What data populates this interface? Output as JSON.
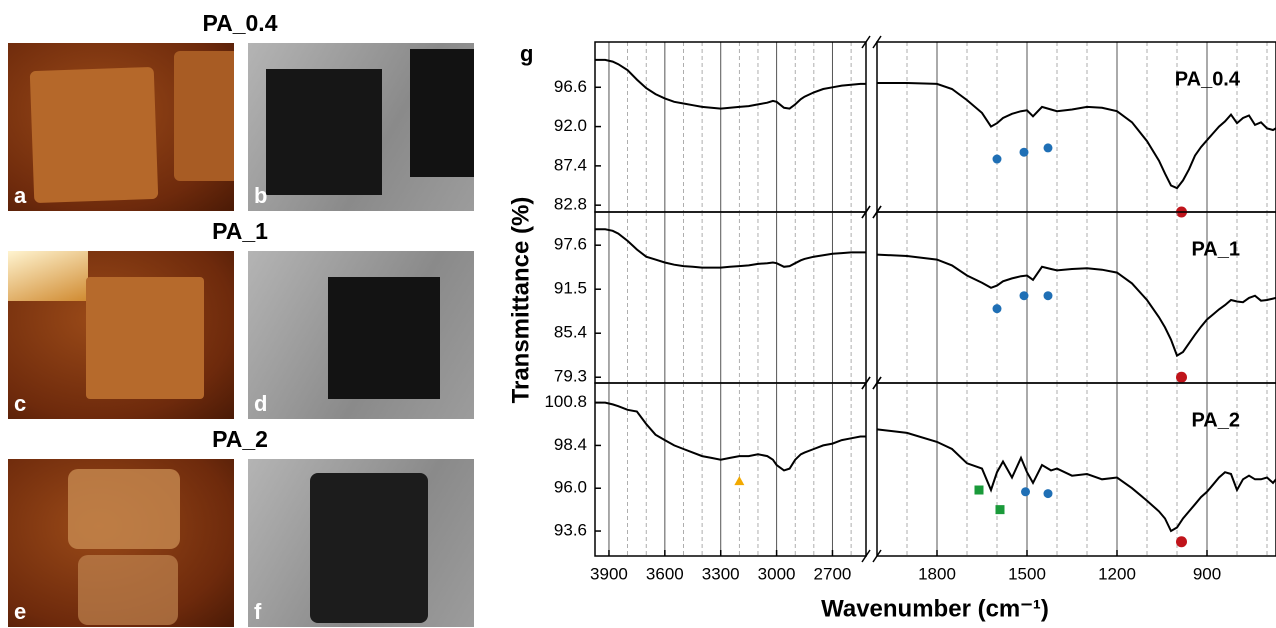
{
  "photos": {
    "titles": [
      "PA_0.4",
      "PA_1",
      "PA_2"
    ],
    "labels": [
      "a",
      "b",
      "c",
      "d",
      "e",
      "f"
    ]
  },
  "chart_data": {
    "type": "line",
    "panel_label": "g",
    "xlabel": "Wavenumber (cm⁻¹)",
    "ylabel": "Transmittance (%)",
    "grid": true,
    "x_segments": [
      {
        "xlim": [
          3975,
          2520
        ],
        "xticks": [
          3900,
          3600,
          3300,
          3000,
          2700
        ],
        "minor_xticks": [
          3800,
          3700,
          3500,
          3400,
          3200,
          3100,
          2900,
          2800,
          2600
        ]
      },
      {
        "xlim": [
          2000,
          670
        ],
        "xticks": [
          1800,
          1500,
          1200,
          900
        ],
        "minor_xticks": [
          1900,
          1700,
          1600,
          1400,
          1300,
          1100,
          1000,
          800,
          700
        ]
      }
    ],
    "x": [
      3975,
      3920,
      3880,
      3850,
      3800,
      3750,
      3700,
      3650,
      3600,
      3550,
      3500,
      3450,
      3400,
      3350,
      3300,
      3250,
      3200,
      3150,
      3100,
      3050,
      3020,
      3000,
      2960,
      2930,
      2900,
      2870,
      2850,
      2800,
      2750,
      2700,
      2650,
      2600,
      2550,
      2520,
      2000,
      1900,
      1800,
      1750,
      1700,
      1650,
      1620,
      1600,
      1580,
      1550,
      1520,
      1500,
      1480,
      1450,
      1420,
      1400,
      1350,
      1300,
      1250,
      1200,
      1150,
      1100,
      1060,
      1040,
      1020,
      1000,
      980,
      960,
      940,
      920,
      900,
      880,
      860,
      840,
      820,
      800,
      780,
      760,
      740,
      720,
      700,
      680,
      670
    ],
    "panels": [
      {
        "title": "PA_0.4",
        "ylim": [
          82.0,
          101.9
        ],
        "yticks": [
          82.8,
          87.4,
          {
            "value": 92.0,
            "label": "92.0"
          },
          96.6
        ],
        "series": [
          {
            "color": "#000000",
            "values": [
              99.8,
              99.8,
              99.6,
              99.3,
              98.6,
              97.5,
              96.5,
              95.8,
              95.3,
              94.9,
              94.7,
              94.5,
              94.3,
              94.2,
              94.1,
              94.2,
              94.3,
              94.4,
              94.6,
              94.8,
              95.0,
              94.9,
              94.2,
              94.1,
              94.6,
              95.2,
              95.5,
              96.0,
              96.4,
              96.6,
              96.8,
              96.9,
              97.0,
              97.0,
              97.1,
              97.1,
              97.0,
              96.4,
              95.1,
              93.6,
              92.0,
              92.4,
              93.0,
              93.5,
              93.8,
              93.9,
              93.2,
              94.3,
              94.0,
              93.8,
              94.0,
              94.3,
              94.2,
              93.8,
              92.5,
              90.3,
              88.0,
              86.5,
              85.1,
              84.8,
              85.7,
              87.0,
              88.6,
              89.6,
              90.4,
              91.2,
              92.0,
              92.6,
              93.4,
              92.4,
              93.0,
              93.3,
              92.2,
              92.5,
              91.8,
              91.6,
              91.8
            ]
          }
        ],
        "markers": [
          {
            "shape": "circle",
            "color": "#1f6fb5",
            "x": [
              1600,
              1510,
              1430
            ],
            "values": [
              88.2,
              89.0,
              89.5
            ]
          },
          {
            "shape": "circle",
            "color": "#c0141b",
            "x": [
              985
            ],
            "values": [
              82.0
            ]
          }
        ]
      },
      {
        "title": "PA_1",
        "ylim": [
          78.5,
          102.2
        ],
        "yticks": [
          79.3,
          85.4,
          91.5,
          97.6
        ],
        "series": [
          {
            "color": "#000000",
            "values": [
              99.8,
              99.8,
              99.6,
              99.2,
              98.2,
              97.0,
              96.0,
              95.6,
              95.2,
              94.9,
              94.7,
              94.6,
              94.5,
              94.5,
              94.5,
              94.6,
              94.7,
              94.8,
              95.0,
              95.1,
              95.2,
              95.1,
              94.6,
              94.7,
              95.1,
              95.5,
              95.7,
              96.0,
              96.2,
              96.4,
              96.5,
              96.6,
              96.6,
              96.6,
              96.3,
              96.1,
              95.6,
              94.8,
              93.4,
              92.4,
              91.7,
              92.0,
              92.6,
              93.0,
              93.3,
              93.4,
              92.8,
              94.6,
              94.3,
              94.1,
              94.3,
              94.4,
              94.2,
              93.8,
              92.3,
              90.0,
              87.6,
              86.2,
              84.5,
              82.3,
              82.8,
              84.0,
              85.2,
              86.3,
              87.3,
              88.0,
              88.7,
              89.3,
              90.0,
              89.8,
              89.7,
              90.3,
              90.6,
              89.9,
              90.0,
              90.2,
              90.3
            ]
          }
        ],
        "markers": [
          {
            "shape": "circle",
            "color": "#1f6fb5",
            "x": [
              1600,
              1510,
              1430
            ],
            "values": [
              88.8,
              90.6,
              90.6
            ]
          },
          {
            "shape": "circle",
            "color": "#c0141b",
            "x": [
              985
            ],
            "values": [
              79.3
            ]
          }
        ]
      },
      {
        "title": "PA_2",
        "ylim": [
          92.2,
          101.9
        ],
        "yticks": [
          93.6,
          {
            "value": 96.0,
            "label": "96.0"
          },
          98.4,
          100.8
        ],
        "series": [
          {
            "color": "#000000",
            "values": [
              100.8,
              100.8,
              100.7,
              100.6,
              100.4,
              100.3,
              99.6,
              99.0,
              98.7,
              98.4,
              98.2,
              98.0,
              97.8,
              97.7,
              97.6,
              97.7,
              97.8,
              97.8,
              97.9,
              97.8,
              97.6,
              97.3,
              97.0,
              97.1,
              97.6,
              97.9,
              98.0,
              98.2,
              98.4,
              98.5,
              98.7,
              98.8,
              98.9,
              98.9,
              99.3,
              99.1,
              98.6,
              98.2,
              97.4,
              97.1,
              95.9,
              96.9,
              97.5,
              96.6,
              97.7,
              96.9,
              96.3,
              97.3,
              97.0,
              97.1,
              96.7,
              96.8,
              96.5,
              96.6,
              96.0,
              95.3,
              94.7,
              94.3,
              93.6,
              93.8,
              94.3,
              94.7,
              95.1,
              95.5,
              95.8,
              96.2,
              96.6,
              96.9,
              96.8,
              95.9,
              96.5,
              96.7,
              96.5,
              96.5,
              96.6,
              96.3,
              96.5
            ]
          }
        ],
        "markers": [
          {
            "shape": "triangle",
            "color": "#f2a900",
            "x": [
              3200
            ],
            "values": [
              96.4
            ]
          },
          {
            "shape": "square",
            "color": "#1a9a3a",
            "x": [
              1660,
              1590
            ],
            "values": [
              95.9,
              94.8
            ]
          },
          {
            "shape": "circle",
            "color": "#1f6fb5",
            "x": [
              1505,
              1430
            ],
            "values": [
              95.8,
              95.7
            ]
          },
          {
            "shape": "circle",
            "color": "#c0141b",
            "x": [
              985
            ],
            "values": [
              93.0
            ]
          }
        ]
      }
    ]
  }
}
